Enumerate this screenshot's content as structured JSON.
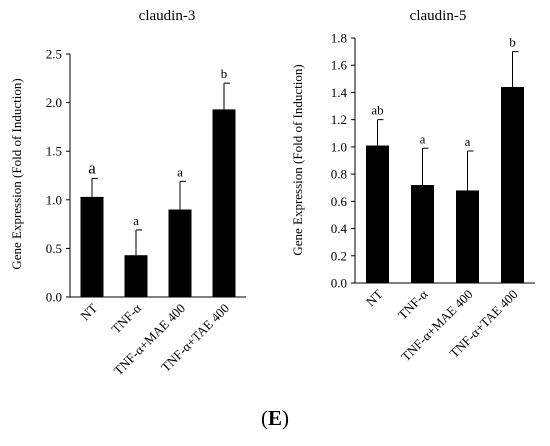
{
  "figure": {
    "panel_label": {
      "open": "(",
      "letter": "E",
      "close": ")"
    }
  },
  "chart_data": [
    {
      "type": "bar",
      "title": "claudin-3",
      "ylabel": "Gene Expression (Fold of Induction)",
      "xlabel": "",
      "categories": [
        "NT",
        "TNF-α",
        "TNF-α+MAE 400",
        "TNF-α+TAE 400"
      ],
      "values": [
        1.03,
        0.43,
        0.9,
        1.93
      ],
      "errors": [
        0.19,
        0.26,
        0.29,
        0.27
      ],
      "annotations": [
        "a",
        "a",
        "a",
        "b"
      ],
      "ylim": [
        0,
        2.5
      ],
      "yticks": [
        "0.0",
        "0.5",
        "1.0",
        "1.5",
        "2.0",
        "2.5"
      ],
      "grid": false,
      "bar_color": "#000000"
    },
    {
      "type": "bar",
      "title": "claudin-5",
      "ylabel": "Gene Expression (Fold of Induction)",
      "xlabel": "",
      "categories": [
        "NT",
        "TNF-α",
        "TNF-α+MAE 400",
        "TNF-α+TAE 400"
      ],
      "values": [
        1.01,
        0.72,
        0.68,
        1.44
      ],
      "errors": [
        0.19,
        0.27,
        0.29,
        0.26
      ],
      "annotations": [
        "ab",
        "a",
        "a",
        "b"
      ],
      "ylim": [
        0,
        1.8
      ],
      "yticks": [
        "0.0",
        "0.2",
        "0.4",
        "0.6",
        "0.8",
        "1.0",
        "1.2",
        "1.4",
        "1.6",
        "1.8"
      ],
      "grid": false,
      "bar_color": "#000000"
    }
  ]
}
